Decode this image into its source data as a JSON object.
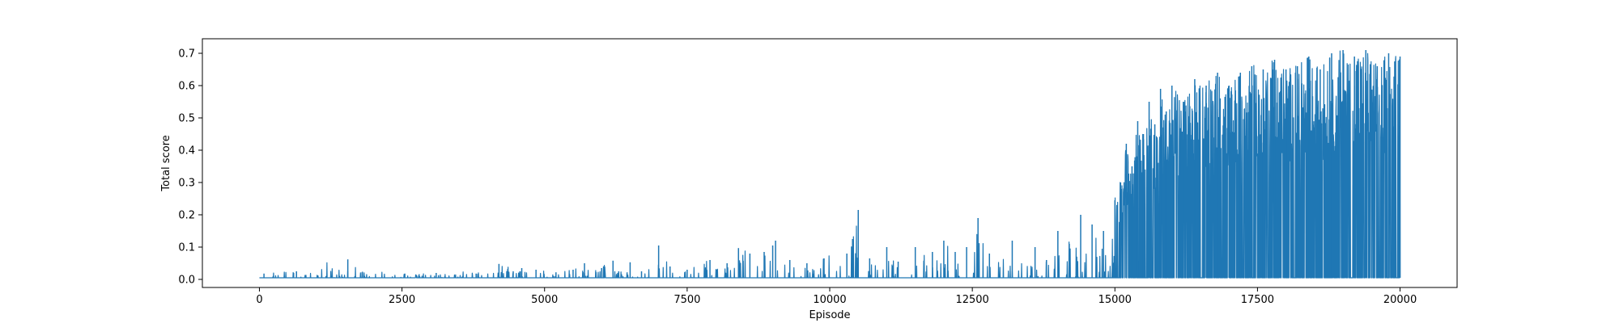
{
  "chart_data": {
    "type": "line",
    "title": "",
    "xlabel": "Episode",
    "ylabel": "Total score",
    "xlim": [
      -1000,
      21000
    ],
    "ylim": [
      -0.025,
      0.745
    ],
    "x_ticks": [
      0,
      2500,
      5000,
      7500,
      10000,
      12500,
      15000,
      17500,
      20000
    ],
    "x_tick_labels": [
      "0",
      "2500",
      "5000",
      "7500",
      "10000",
      "12500",
      "15000",
      "17500",
      "20000"
    ],
    "y_ticks": [
      0.0,
      0.1,
      0.2,
      0.3,
      0.4,
      0.5,
      0.6,
      0.7
    ],
    "y_tick_labels": [
      "0.0",
      "0.1",
      "0.2",
      "0.3",
      "0.4",
      "0.5",
      "0.6",
      "0.7"
    ],
    "grid": false,
    "legend": "none",
    "series": [
      {
        "color": "#1f77b4",
        "x_range": [
          0,
          20000
        ],
        "baseline": 0.005,
        "episode_values": [
          [
            0,
            0.005
          ],
          [
            500,
            0.005
          ],
          [
            1000,
            0.005
          ],
          [
            1500,
            0.005
          ],
          [
            2000,
            0.005
          ],
          [
            2500,
            0.005
          ],
          [
            3000,
            0.005
          ],
          [
            3500,
            0.005
          ],
          [
            4000,
            0.005
          ],
          [
            4500,
            0.005
          ],
          [
            5000,
            0.005
          ],
          [
            5500,
            0.005
          ],
          [
            6000,
            0.005
          ],
          [
            6500,
            0.005
          ],
          [
            7000,
            0.005
          ],
          [
            7500,
            0.005
          ],
          [
            8000,
            0.005
          ],
          [
            8500,
            0.005
          ],
          [
            9000,
            0.005
          ],
          [
            9500,
            0.005
          ],
          [
            10000,
            0.005
          ],
          [
            10500,
            0.005
          ],
          [
            11000,
            0.005
          ],
          [
            11500,
            0.005
          ],
          [
            12000,
            0.005
          ],
          [
            12500,
            0.005
          ],
          [
            13000,
            0.005
          ],
          [
            13500,
            0.005
          ],
          [
            14000,
            0.005
          ],
          [
            14500,
            0.005
          ],
          [
            15000,
            0.005
          ],
          [
            15500,
            0.005
          ],
          [
            16000,
            0.005
          ],
          [
            16500,
            0.005
          ],
          [
            17000,
            0.005
          ],
          [
            17500,
            0.005
          ],
          [
            18000,
            0.005
          ],
          [
            18500,
            0.005
          ],
          [
            19000,
            0.005
          ],
          [
            19500,
            0.005
          ],
          [
            20000,
            0.005
          ]
        ],
        "notable_peaks": [
          [
            80,
            0.018
          ],
          [
            600,
            0.02
          ],
          [
            650,
            0.025
          ],
          [
            1550,
            0.062
          ],
          [
            1800,
            0.022
          ],
          [
            2550,
            0.018
          ],
          [
            2800,
            0.016
          ],
          [
            3100,
            0.02
          ],
          [
            3800,
            0.018
          ],
          [
            4200,
            0.048
          ],
          [
            4450,
            0.025
          ],
          [
            4600,
            0.035
          ],
          [
            4850,
            0.03
          ],
          [
            5200,
            0.022
          ],
          [
            5500,
            0.03
          ],
          [
            5700,
            0.05
          ],
          [
            6000,
            0.035
          ],
          [
            6200,
            0.058
          ],
          [
            6300,
            0.025
          ],
          [
            6500,
            0.053
          ],
          [
            6700,
            0.025
          ],
          [
            7000,
            0.105
          ],
          [
            7200,
            0.04
          ],
          [
            7500,
            0.03
          ],
          [
            7900,
            0.06
          ],
          [
            8200,
            0.05
          ],
          [
            8400,
            0.097
          ],
          [
            8600,
            0.08
          ],
          [
            8850,
            0.085
          ],
          [
            9000,
            0.105
          ],
          [
            9050,
            0.12
          ],
          [
            9300,
            0.06
          ],
          [
            9600,
            0.05
          ],
          [
            9900,
            0.065
          ],
          [
            10300,
            0.08
          ],
          [
            10400,
            0.125
          ],
          [
            10500,
            0.215
          ],
          [
            10700,
            0.065
          ],
          [
            11000,
            0.1
          ],
          [
            11200,
            0.055
          ],
          [
            11500,
            0.1
          ],
          [
            11800,
            0.085
          ],
          [
            12000,
            0.12
          ],
          [
            12200,
            0.085
          ],
          [
            12400,
            0.1
          ],
          [
            12600,
            0.19
          ],
          [
            12800,
            0.08
          ],
          [
            13200,
            0.12
          ],
          [
            13600,
            0.1
          ],
          [
            13800,
            0.06
          ],
          [
            14000,
            0.15
          ],
          [
            14200,
            0.11
          ],
          [
            14400,
            0.2
          ],
          [
            14600,
            0.17
          ],
          [
            14800,
            0.15
          ],
          [
            15000,
            0.245
          ],
          [
            15100,
            0.3
          ],
          [
            15200,
            0.42
          ],
          [
            15300,
            0.35
          ],
          [
            15400,
            0.49
          ],
          [
            15500,
            0.45
          ],
          [
            15600,
            0.55
          ],
          [
            15700,
            0.48
          ],
          [
            15800,
            0.59
          ],
          [
            15900,
            0.52
          ],
          [
            16000,
            0.6
          ],
          [
            16200,
            0.55
          ],
          [
            16400,
            0.62
          ],
          [
            16600,
            0.6
          ],
          [
            16800,
            0.64
          ],
          [
            17000,
            0.6
          ],
          [
            17200,
            0.64
          ],
          [
            17400,
            0.66
          ],
          [
            17600,
            0.65
          ],
          [
            17800,
            0.68
          ],
          [
            18000,
            0.65
          ],
          [
            18200,
            0.66
          ],
          [
            18400,
            0.69
          ],
          [
            18600,
            0.65
          ],
          [
            18800,
            0.7
          ],
          [
            19000,
            0.71
          ],
          [
            19200,
            0.69
          ],
          [
            19400,
            0.71
          ],
          [
            19600,
            0.66
          ],
          [
            19800,
            0.7
          ],
          [
            20000,
            0.69
          ]
        ]
      }
    ]
  }
}
